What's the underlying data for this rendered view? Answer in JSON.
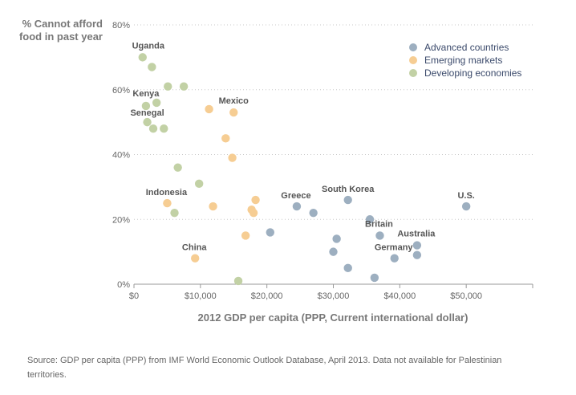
{
  "chart_data": {
    "type": "scatter",
    "ylabel": "% Cannot afford food in past year",
    "xlabel": "2012 GDP per capita (PPP, Current international dollar)",
    "xlim": [
      0,
      60000
    ],
    "ylim": [
      0,
      80
    ],
    "x_ticks": [
      {
        "value": 0,
        "label": "$0"
      },
      {
        "value": 10000,
        "label": "$10,000"
      },
      {
        "value": 20000,
        "label": "$20,000"
      },
      {
        "value": 30000,
        "label": "$30,000"
      },
      {
        "value": 40000,
        "label": "$40,000"
      },
      {
        "value": 50000,
        "label": "$50,000"
      }
    ],
    "y_ticks": [
      {
        "value": 0,
        "label": "0%"
      },
      {
        "value": 20,
        "label": "20%"
      },
      {
        "value": 40,
        "label": "40%"
      },
      {
        "value": 60,
        "label": "60%"
      },
      {
        "value": 80,
        "label": "80%"
      }
    ],
    "grid": "horizontal dotted",
    "legend_position": "top-right",
    "series": [
      {
        "name": "Advanced countries",
        "color": "#9dafc0",
        "points": [
          {
            "x": 20500,
            "y": 16
          },
          {
            "x": 24500,
            "y": 24,
            "label": "Greece"
          },
          {
            "x": 27000,
            "y": 22
          },
          {
            "x": 32200,
            "y": 26,
            "label": "South Korea"
          },
          {
            "x": 30000,
            "y": 10
          },
          {
            "x": 30500,
            "y": 14
          },
          {
            "x": 32200,
            "y": 5
          },
          {
            "x": 35500,
            "y": 20
          },
          {
            "x": 36200,
            "y": 2
          },
          {
            "x": 37000,
            "y": 15,
            "label": "Britain"
          },
          {
            "x": 39200,
            "y": 8,
            "label": "Germany"
          },
          {
            "x": 42600,
            "y": 12,
            "label": "Australia"
          },
          {
            "x": 42600,
            "y": 9
          },
          {
            "x": 50000,
            "y": 24,
            "label": "U.S."
          }
        ]
      },
      {
        "name": "Emerging markets",
        "color": "#f6cd93",
        "points": [
          {
            "x": 5000,
            "y": 25,
            "label": "Indonesia"
          },
          {
            "x": 9200,
            "y": 8,
            "label": "China"
          },
          {
            "x": 11300,
            "y": 54
          },
          {
            "x": 11900,
            "y": 24
          },
          {
            "x": 13800,
            "y": 45
          },
          {
            "x": 15000,
            "y": 53,
            "label": "Mexico"
          },
          {
            "x": 14800,
            "y": 39
          },
          {
            "x": 16800,
            "y": 15
          },
          {
            "x": 17700,
            "y": 23
          },
          {
            "x": 18000,
            "y": 22
          },
          {
            "x": 18300,
            "y": 26
          }
        ]
      },
      {
        "name": "Developing economies",
        "color": "#c2d1a5",
        "points": [
          {
            "x": 1300,
            "y": 70,
            "label": "Uganda"
          },
          {
            "x": 2700,
            "y": 67
          },
          {
            "x": 5100,
            "y": 61
          },
          {
            "x": 7500,
            "y": 61
          },
          {
            "x": 1800,
            "y": 55,
            "label": "Kenya"
          },
          {
            "x": 3400,
            "y": 56
          },
          {
            "x": 2000,
            "y": 50,
            "label": "Senegal"
          },
          {
            "x": 2900,
            "y": 48
          },
          {
            "x": 4500,
            "y": 48
          },
          {
            "x": 6600,
            "y": 36
          },
          {
            "x": 9800,
            "y": 31
          },
          {
            "x": 6100,
            "y": 22
          },
          {
            "x": 15700,
            "y": 1
          }
        ]
      }
    ]
  },
  "source_note": "Source: GDP per capita (PPP) from IMF World Economic Outlook Database, April 2013. Data not available for Palestinian territories."
}
